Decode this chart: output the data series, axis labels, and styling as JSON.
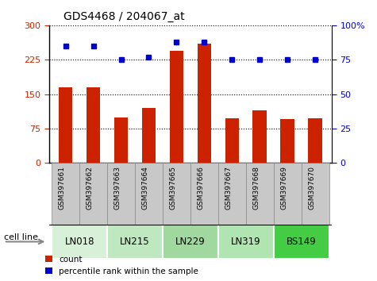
{
  "title": "GDS4468 / 204067_at",
  "samples": [
    "GSM397661",
    "GSM397662",
    "GSM397663",
    "GSM397664",
    "GSM397665",
    "GSM397666",
    "GSM397667",
    "GSM397668",
    "GSM397669",
    "GSM397670"
  ],
  "count_values": [
    165,
    165,
    100,
    120,
    245,
    260,
    98,
    115,
    95,
    97
  ],
  "percentile_values": [
    85,
    85,
    75,
    77,
    88,
    88,
    75,
    75,
    75,
    75
  ],
  "cell_line_groups": [
    {
      "name": "LN018",
      "start": 0,
      "end": 1,
      "color": "#d8f0d8"
    },
    {
      "name": "LN215",
      "start": 2,
      "end": 3,
      "color": "#c0e8c0"
    },
    {
      "name": "LN229",
      "start": 4,
      "end": 5,
      "color": "#a0d8a0"
    },
    {
      "name": "LN319",
      "start": 6,
      "end": 7,
      "color": "#b0e4b0"
    },
    {
      "name": "BS149",
      "start": 8,
      "end": 9,
      "color": "#44cc44"
    }
  ],
  "left_ylim": [
    0,
    300
  ],
  "left_yticks": [
    0,
    75,
    150,
    225,
    300
  ],
  "right_ylim": [
    0,
    100
  ],
  "right_yticks": [
    0,
    25,
    50,
    75,
    100
  ],
  "bar_color": "#cc2200",
  "dot_color": "#0000cc",
  "bar_width": 0.5,
  "left_tick_color": "#cc2200",
  "right_tick_color": "#0000cc",
  "cell_line_label": "cell line",
  "xtick_bg_color": "#c8c8c8",
  "xtick_border_color": "#888888"
}
